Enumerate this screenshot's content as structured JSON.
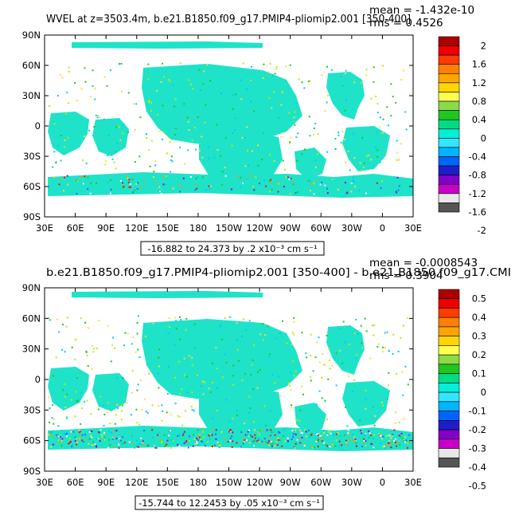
{
  "colors": {
    "ocean_field": "#1ee3c8",
    "scatter": [
      "#1ec81e",
      "#b4f000",
      "#00c8ff",
      "#ffdc32",
      "#ff9600",
      "#e61414",
      "#3264ff",
      "#a000c8",
      "#ffffff"
    ]
  },
  "chart_data": [
    {
      "type": "heatmap",
      "title": "WVEL at z=3503.4m, b.e21.B1850.f09_g17.PMIP4-pliomip2.001 [350-400]",
      "stats": {
        "mean": "mean = -1.432e-10",
        "rms": "rms = 0.4526"
      },
      "caption": "-16.882 to 24.373 by .2 x10⁻³ cm s⁻¹",
      "x_ticks": [
        "30E",
        "60E",
        "90E",
        "120E",
        "150E",
        "180",
        "150W",
        "120W",
        "90W",
        "60W",
        "30W",
        "0",
        "30E"
      ],
      "y_ticks": [
        "90N",
        "60N",
        "30N",
        "0",
        "30S",
        "60S",
        "90S"
      ],
      "colorbar": {
        "labels": [
          "2",
          "1.6",
          "1.2",
          "0.8",
          "0.4",
          "0",
          "-0.4",
          "-0.8",
          "-1.2",
          "-1.6",
          "-2"
        ],
        "colors": [
          "#aa0000",
          "#ee0000",
          "#ff3c00",
          "#ff7f00",
          "#ffa500",
          "#ffd700",
          "#ffff50",
          "#8cd94a",
          "#1ec81e",
          "#00dc82",
          "#00f0dc",
          "#32e6ff",
          "#00b4ff",
          "#0064ff",
          "#1e1ec8",
          "#8200c8",
          "#c800c8",
          "#e8e8e8",
          "#555555"
        ]
      }
    },
    {
      "type": "heatmap",
      "title": "b.e21.B1850.f09_g17.PMIP4-pliomip2.001 [350-400] - b.e21.B1850.f09_g17.CMI",
      "stats": {
        "mean": "mean = -0.0008543",
        "rms": "rms = 0.3904"
      },
      "caption": "-15.744 to 12.2453 by .05 x10⁻³ cm s⁻¹",
      "x_ticks": [
        "30E",
        "60E",
        "90E",
        "120E",
        "150E",
        "180",
        "150W",
        "120W",
        "90W",
        "60W",
        "30W",
        "0",
        "30E"
      ],
      "y_ticks": [
        "90N",
        "60N",
        "30N",
        "0",
        "30S",
        "60S",
        "90S"
      ],
      "colorbar": {
        "labels": [
          "0.5",
          "0.4",
          "0.3",
          "0.2",
          "0.1",
          "0",
          "-0.1",
          "-0.2",
          "-0.3",
          "-0.4",
          "-0.5"
        ],
        "colors": [
          "#aa0000",
          "#ee0000",
          "#ff3c00",
          "#ff7f00",
          "#ffa500",
          "#ffd700",
          "#ffff50",
          "#8cd94a",
          "#1ec81e",
          "#00dc82",
          "#00f0dc",
          "#32e6ff",
          "#00b4ff",
          "#0064ff",
          "#1e1ec8",
          "#8200c8",
          "#c800c8",
          "#e8e8e8",
          "#555555"
        ]
      }
    }
  ]
}
